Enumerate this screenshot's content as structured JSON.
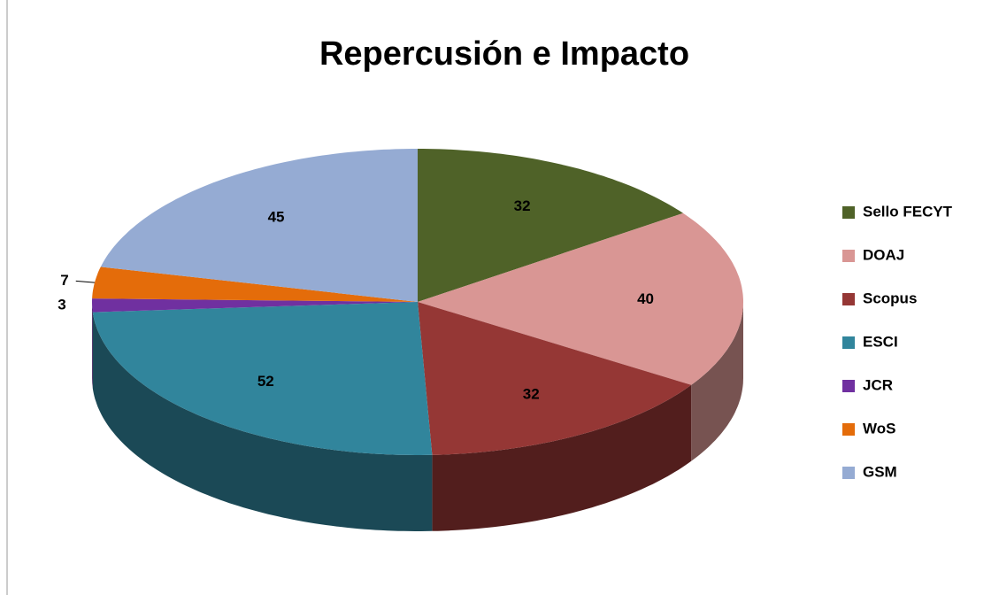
{
  "chart_data": {
    "type": "pie3d",
    "title": "Repercusión e Impacto",
    "categories": [
      "Sello FECYT",
      "DOAJ",
      "Scopus",
      "ESCI",
      "JCR",
      "WoS",
      "GSM"
    ],
    "values": [
      32,
      40,
      32,
      52,
      3,
      7,
      45
    ],
    "colors": [
      "#4f6228",
      "#d99694",
      "#953735",
      "#31859c",
      "#7030a0",
      "#e46c0a",
      "#95abd3"
    ],
    "legend": "right"
  }
}
